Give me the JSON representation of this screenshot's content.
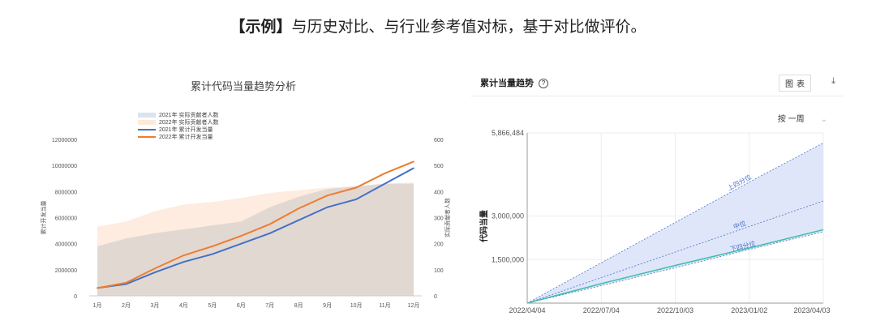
{
  "headline": {
    "bold": "【示例】",
    "rest": "与历史对比、与行业参考值对标，基于对比做评价。"
  },
  "left_panel": {
    "title": "累计代码当量趋势分析"
  },
  "right_panel": {
    "title": "累计当量趋势",
    "help": "?",
    "toggle_chart": "图",
    "toggle_table": "表",
    "range_select": "按 一周"
  },
  "colors": {
    "band2021": "#dbe3ec",
    "band2022": "#fde9d9",
    "line2021": "#4472c4",
    "line2022": "#ed7d31",
    "band_right": "#dbe3f8",
    "industry_line": "#4a72c8",
    "actual_line": "#3cbfa8"
  },
  "chart_data": [
    {
      "type": "line",
      "title": "累计代码当量趋势分析",
      "categories": [
        "1月",
        "2月",
        "3月",
        "4月",
        "5月",
        "6月",
        "7月",
        "8月",
        "9月",
        "10月",
        "11月",
        "12月"
      ],
      "ylabel": "累计开发当量",
      "ylabel_right": "实际贡献者人数",
      "ylim": [
        0,
        12000000
      ],
      "ylim_right": [
        0,
        600
      ],
      "yticks": [
        "0",
        "2000000",
        "4000000",
        "6000000",
        "8000000",
        "10000000",
        "12000000"
      ],
      "yticks_right": [
        "0",
        "100",
        "200",
        "300",
        "400",
        "500",
        "600"
      ],
      "legend": "top-center",
      "series": [
        {
          "name": "2021年 实际贡献者人数",
          "kind": "area",
          "axis": "right",
          "values": [
            190,
            220,
            240,
            255,
            270,
            285,
            340,
            380,
            410,
            420,
            430,
            430
          ]
        },
        {
          "name": "2022年 实际贡献者人数",
          "kind": "area",
          "axis": "right",
          "values": [
            265,
            285,
            325,
            350,
            360,
            375,
            395,
            405,
            415,
            420,
            430,
            435
          ]
        },
        {
          "name": "2021年 累计开发当量",
          "kind": "line",
          "axis": "left",
          "values": [
            600000,
            900000,
            1800000,
            2600000,
            3200000,
            4000000,
            4800000,
            5800000,
            6800000,
            7400000,
            8600000,
            9800000
          ]
        },
        {
          "name": "2022年 累计开发当量",
          "kind": "line",
          "axis": "left",
          "values": [
            600000,
            1000000,
            2100000,
            3100000,
            3800000,
            4600000,
            5500000,
            6700000,
            7700000,
            8300000,
            9400000,
            10300000
          ]
        }
      ]
    },
    {
      "type": "area",
      "title": "累计当量趋势",
      "ylabel": "代码当量",
      "x": [
        "2022/04/04",
        "2022/07/04",
        "2022/10/03",
        "2023/01/02",
        "2023/04/03"
      ],
      "yticks": [
        "1,500,000",
        "3,000,000",
        "5,866,484"
      ],
      "ylim": [
        0,
        5866484
      ],
      "grid": true,
      "series": [
        {
          "name": "上四分位",
          "kind": "dashed",
          "values": [
            0,
            1390000,
            2780000,
            4170000,
            5520000
          ]
        },
        {
          "name": "中位",
          "kind": "dashed",
          "values": [
            0,
            880000,
            1760000,
            2640000,
            3520000
          ]
        },
        {
          "name": "下四分位",
          "kind": "dashed",
          "values": [
            0,
            600000,
            1220000,
            1850000,
            2460000
          ]
        },
        {
          "name": "",
          "kind": "solid",
          "values": [
            0,
            670000,
            1300000,
            1900000,
            2530000
          ]
        }
      ]
    }
  ]
}
